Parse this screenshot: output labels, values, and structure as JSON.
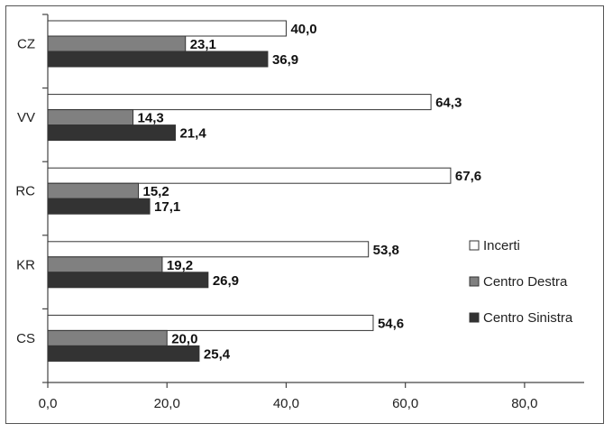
{
  "chart_data": {
    "type": "bar",
    "orientation": "horizontal",
    "categories": [
      "CZ",
      "VV",
      "RC",
      "KR",
      "CS"
    ],
    "series": [
      {
        "name": "Incerti",
        "values": [
          40.0,
          64.3,
          67.6,
          53.8,
          54.6
        ],
        "color": "#ffffff"
      },
      {
        "name": "Centro Destra",
        "values": [
          23.1,
          14.3,
          15.2,
          19.2,
          20.0
        ],
        "color": "#808080"
      },
      {
        "name": "Centro Sinistra",
        "values": [
          36.9,
          21.4,
          17.1,
          26.9,
          25.4
        ],
        "color": "#333333"
      }
    ],
    "value_labels": {
      "Incerti": [
        "40,0",
        "64,3",
        "67,6",
        "53,8",
        "54,6"
      ],
      "Centro Destra": [
        "23,1",
        "14,3",
        "15,2",
        "19,2",
        "20,0"
      ],
      "Centro Sinistra": [
        "36,9",
        "21,4",
        "17,1",
        "26,9",
        "25,4"
      ]
    },
    "xlim": [
      0,
      90
    ],
    "xticks": [
      0,
      20,
      40,
      60,
      80
    ],
    "xtick_labels": [
      "0,0",
      "20,0",
      "40,0",
      "60,0",
      "80,0"
    ],
    "title": "",
    "xlabel": "",
    "ylabel": "",
    "grid": false,
    "legend_position": "right"
  }
}
